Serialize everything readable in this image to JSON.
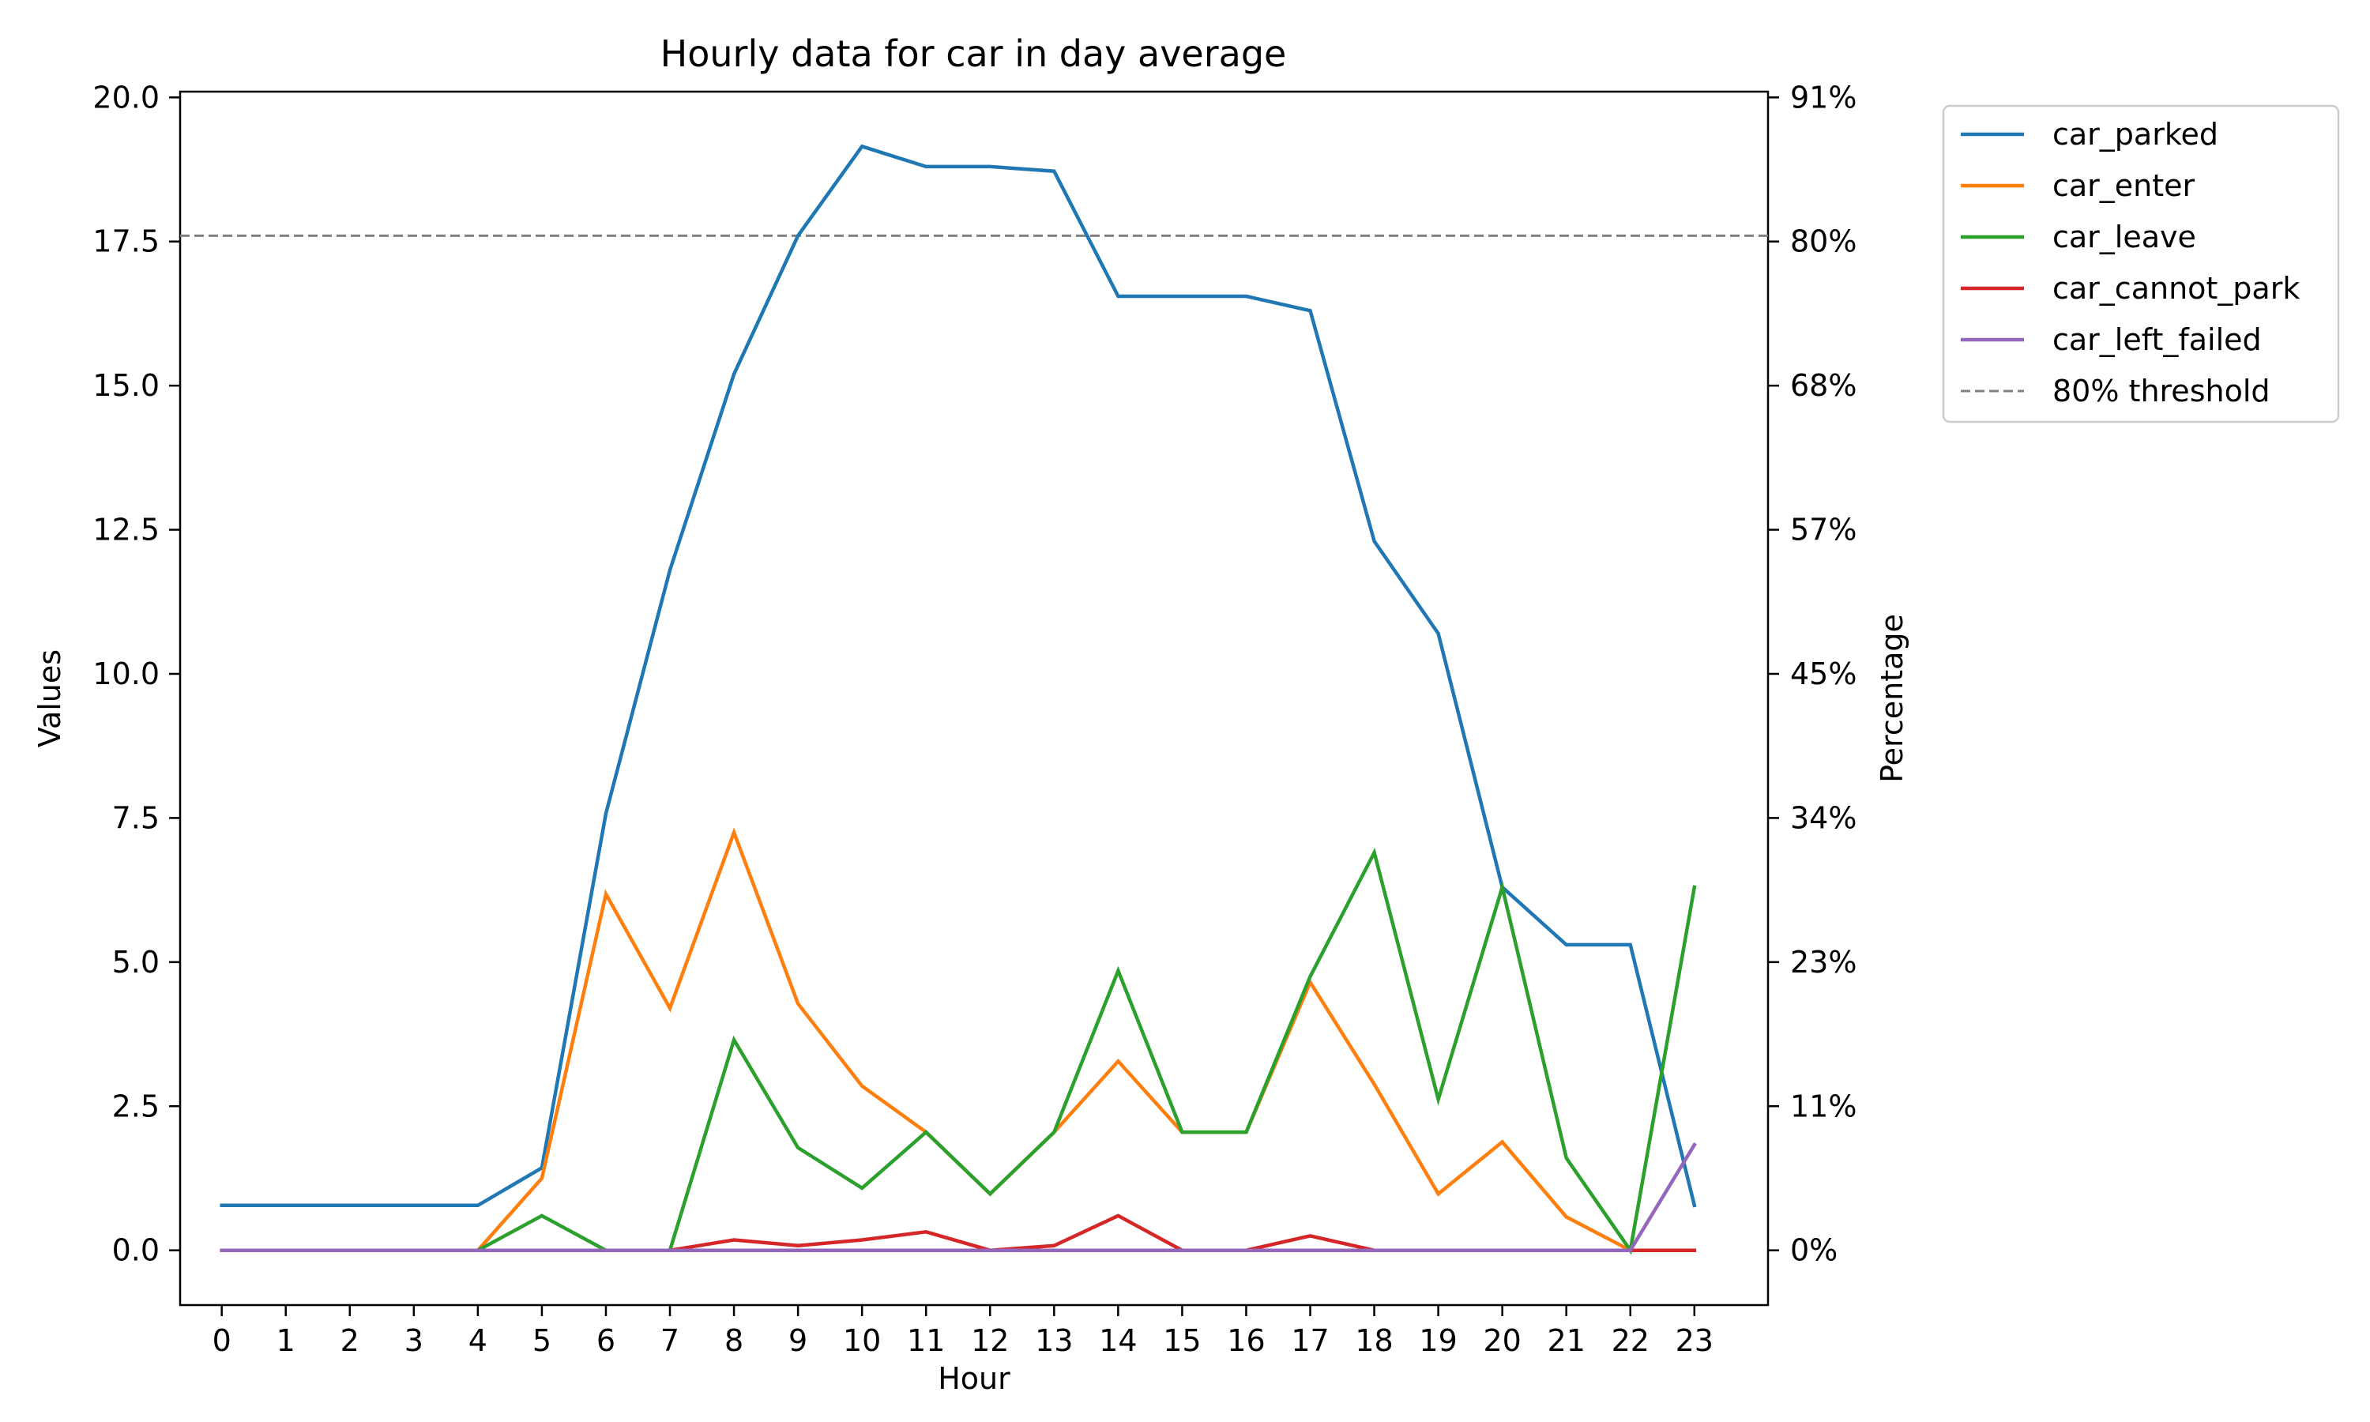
{
  "chart_data": {
    "type": "line",
    "title": "Hourly data for car in day average",
    "xlabel": "Hour",
    "ylabel": "Values",
    "y2label": "Percentage",
    "x": [
      0,
      1,
      2,
      3,
      4,
      5,
      6,
      7,
      8,
      9,
      10,
      11,
      12,
      13,
      14,
      15,
      16,
      17,
      18,
      19,
      20,
      21,
      22,
      23
    ],
    "xticks": [
      "0",
      "1",
      "2",
      "3",
      "4",
      "5",
      "6",
      "7",
      "8",
      "9",
      "10",
      "11",
      "12",
      "13",
      "14",
      "15",
      "16",
      "17",
      "18",
      "19",
      "20",
      "21",
      "22",
      "23"
    ],
    "ylim": [
      -0.95,
      20.1
    ],
    "yticks": [
      0.0,
      2.5,
      5.0,
      7.5,
      10.0,
      12.5,
      15.0,
      17.5,
      20.0
    ],
    "yticklabels": [
      "0.0",
      "2.5",
      "5.0",
      "7.5",
      "10.0",
      "12.5",
      "15.0",
      "17.5",
      "20.0"
    ],
    "y2ticklabels": [
      "0%",
      "11%",
      "23%",
      "34%",
      "45%",
      "57%",
      "68%",
      "80%",
      "91%"
    ],
    "grid": false,
    "legend_position": "outside-top-right",
    "series": [
      {
        "name": "car_parked",
        "color": "#1f77b4",
        "values": [
          0.78,
          0.78,
          0.78,
          0.78,
          0.78,
          1.43,
          7.58,
          11.8,
          15.2,
          17.6,
          19.15,
          18.8,
          18.8,
          18.72,
          16.55,
          16.55,
          16.55,
          16.3,
          12.3,
          10.7,
          6.3,
          5.3,
          5.3,
          0.78
        ]
      },
      {
        "name": "car_enter",
        "color": "#ff7f0e",
        "values": [
          0,
          0,
          0,
          0,
          0,
          1.25,
          6.18,
          4.2,
          7.25,
          4.28,
          2.85,
          2.05,
          0.98,
          2.05,
          3.28,
          2.05,
          2.05,
          4.65,
          2.88,
          0.98,
          1.88,
          0.58,
          0,
          0
        ]
      },
      {
        "name": "car_leave",
        "color": "#2ca02c",
        "values": [
          0,
          0,
          0,
          0,
          0,
          0.6,
          0,
          0,
          3.65,
          1.78,
          1.08,
          2.05,
          0.98,
          2.05,
          4.85,
          2.05,
          2.05,
          4.75,
          6.9,
          2.62,
          6.3,
          1.6,
          0,
          6.3
        ]
      },
      {
        "name": "car_cannot_park",
        "color": "#d62728",
        "values": [
          0,
          0,
          0,
          0,
          0,
          0,
          0,
          0,
          0.18,
          0.08,
          0.18,
          0.32,
          0,
          0.08,
          0.6,
          0,
          0,
          0.25,
          0,
          0,
          0,
          0,
          0,
          0
        ]
      },
      {
        "name": "car_left_failed",
        "color": "#9467bd",
        "values": [
          0,
          0,
          0,
          0,
          0,
          0,
          0,
          0,
          0,
          0,
          0,
          0,
          0,
          0,
          0,
          0,
          0,
          0,
          0,
          0,
          0,
          0,
          0,
          1.83
        ]
      }
    ],
    "threshold": {
      "name": "80% threshold",
      "value": 17.6,
      "color": "#808080"
    }
  }
}
